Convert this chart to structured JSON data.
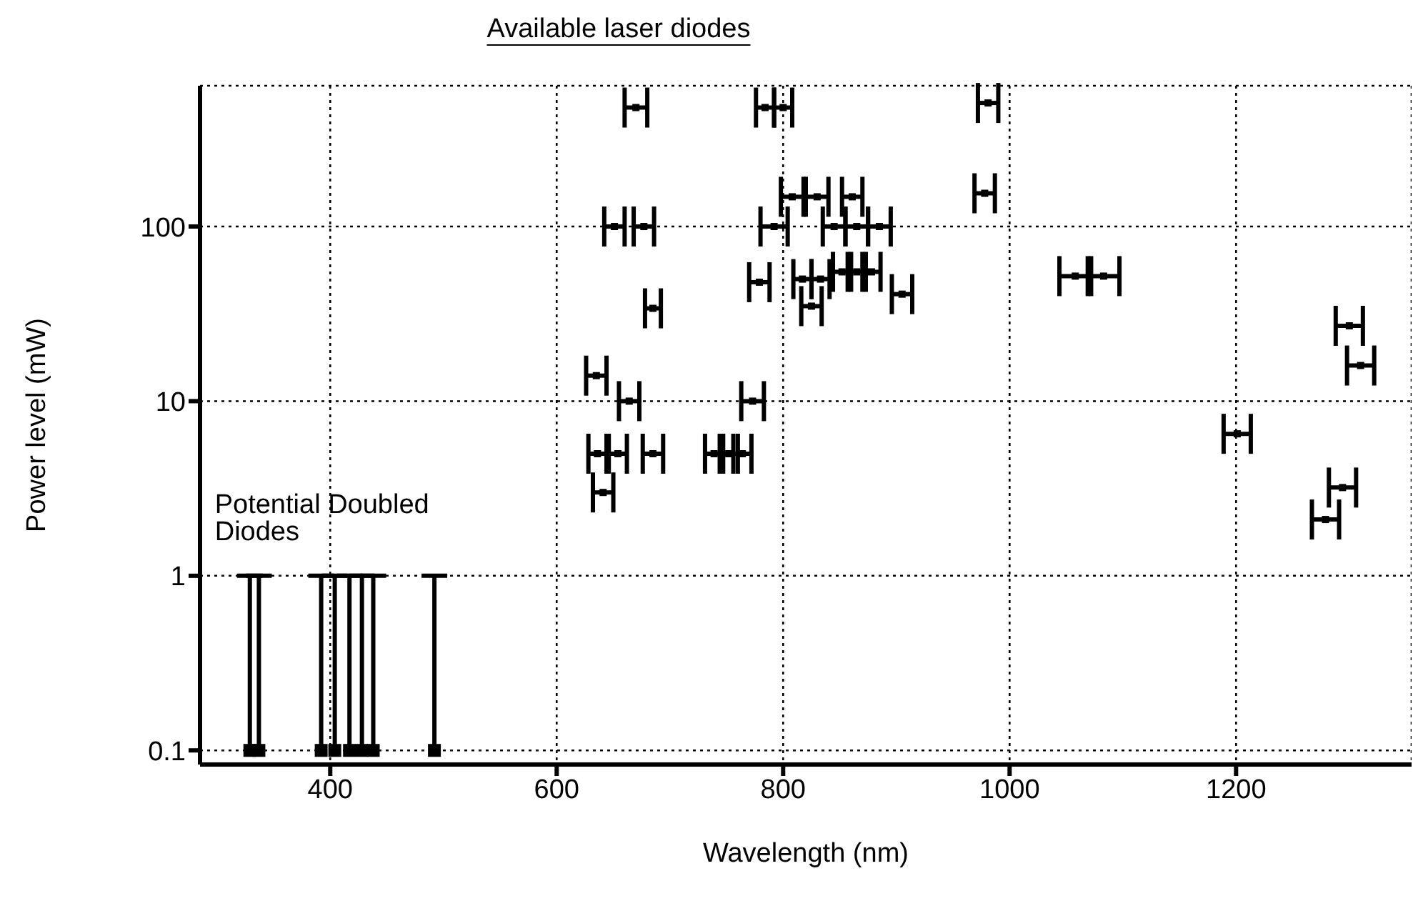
{
  "chart_data": {
    "type": "scatter",
    "title": "Available laser diodes",
    "xlabel": "Wavelength (nm)",
    "ylabel": "Power level (mW)",
    "xlim": [
      285,
      1355
    ],
    "xticks": [
      400,
      600,
      800,
      1000,
      1200
    ],
    "ylim": [
      0.083,
      640
    ],
    "yticks": [
      0.1,
      1,
      10,
      100
    ],
    "log": "y",
    "grid": true,
    "legend": false,
    "series": [
      {
        "color": "#000000",
        "marker": "square",
        "x": [
          670,
          651,
          677,
          685,
          635,
          664,
          636,
          654,
          685,
          641,
          784,
          800,
          981,
          808,
          830,
          861,
          978,
          792,
          845,
          865,
          885,
          779,
          817,
          833,
          825,
          852,
          865,
          878,
          905,
          773,
          739,
          752,
          764,
          1058,
          1083,
          1300,
          1310,
          1201,
          1294,
          1279
        ],
        "values": [
          480,
          100,
          100,
          34,
          14,
          10,
          5,
          5,
          5,
          3,
          480,
          480,
          510,
          148,
          148,
          148,
          155,
          100,
          100,
          100,
          100,
          48,
          50,
          50,
          35,
          55,
          55,
          55,
          41,
          10,
          5,
          5,
          5,
          52,
          52,
          27,
          16,
          6.5,
          3.2,
          2.1
        ],
        "xerrors": [
          10,
          9,
          9,
          7,
          9,
          9,
          8,
          8,
          9,
          9,
          8,
          8,
          9,
          10,
          10,
          9,
          9,
          12,
          10,
          10,
          10,
          9,
          8,
          8,
          9,
          8,
          8,
          8,
          9,
          10,
          8,
          8,
          8,
          14,
          14,
          12,
          12,
          12,
          12,
          12
        ]
      },
      {
        "name": "Potential Doubled Diodes",
        "color": "#000000",
        "marker": "square",
        "x": [
          329,
          337,
          392,
          404,
          417,
          428,
          438,
          492
        ],
        "values": [
          0.1,
          0.1,
          0.1,
          0.1,
          0.1,
          0.1,
          0.1,
          0.1
        ],
        "errors": [
          [
            0.1,
            1
          ],
          [
            0.1,
            1
          ],
          [
            0.1,
            1
          ],
          [
            0.1,
            1
          ],
          [
            0.1,
            1
          ],
          [
            0.1,
            1
          ],
          [
            0.1,
            1
          ],
          [
            0.1,
            1
          ]
        ]
      }
    ]
  }
}
